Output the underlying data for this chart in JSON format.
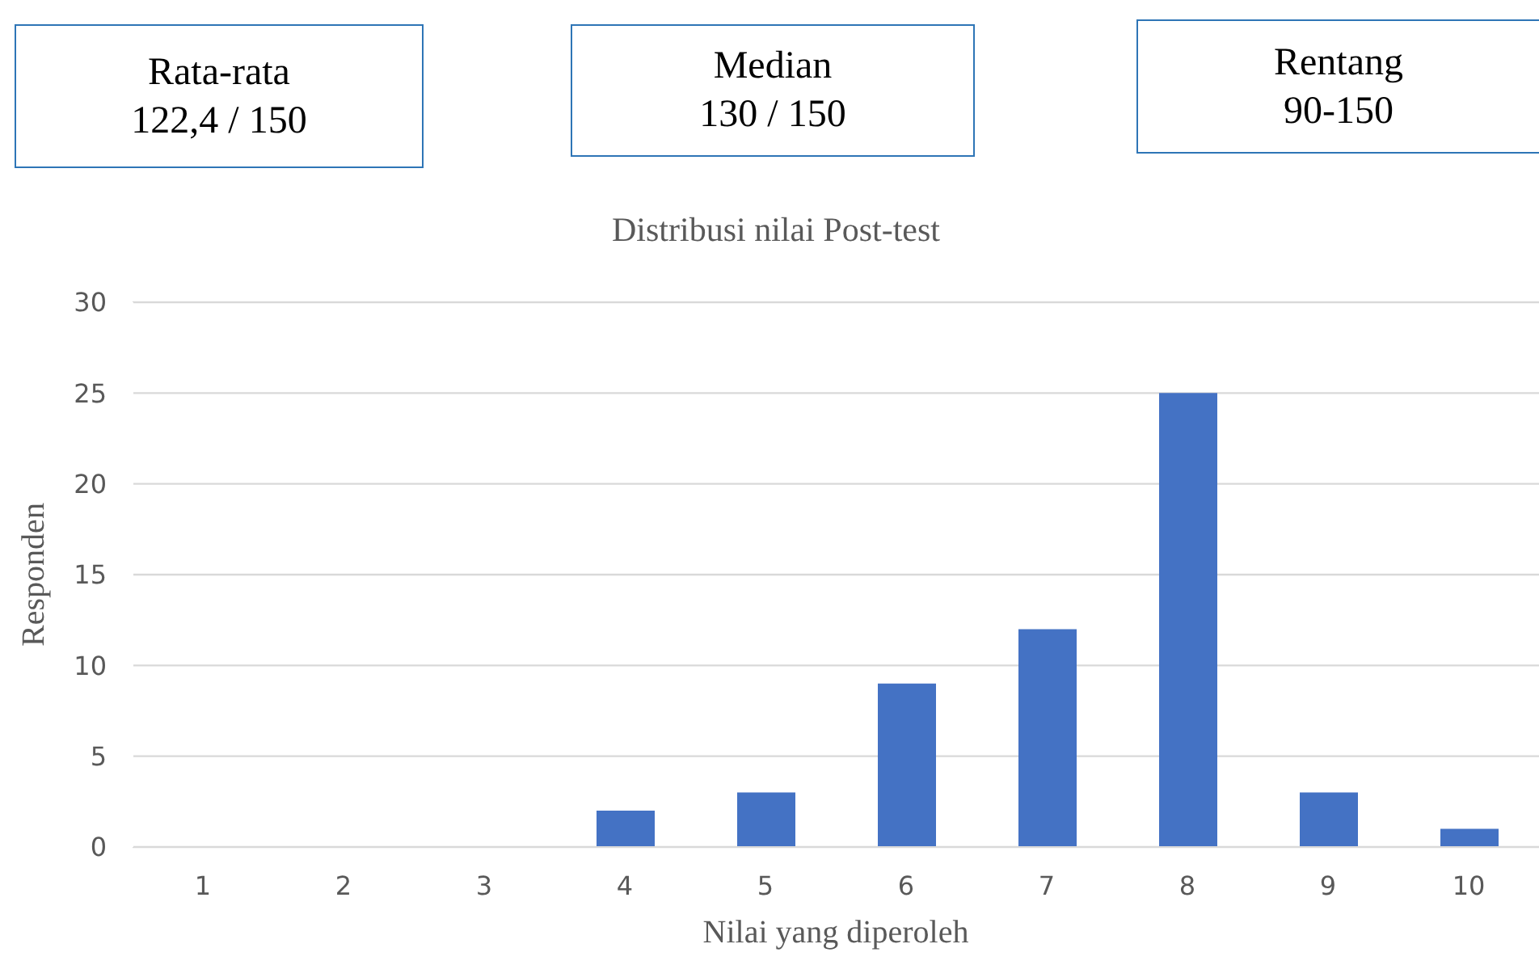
{
  "chart_data": {
    "type": "bar",
    "title": "Distribusi nilai Post-test",
    "xlabel": "Nilai yang diperoleh",
    "ylabel": "Responden",
    "categories": [
      "1",
      "2",
      "3",
      "4",
      "5",
      "6",
      "7",
      "8",
      "9",
      "10"
    ],
    "values": [
      0,
      0,
      0,
      2,
      3,
      9,
      12,
      25,
      3,
      1
    ],
    "color": "#4472c4",
    "ylim": [
      0,
      30
    ],
    "yticks": [
      0,
      5,
      10,
      15,
      20,
      25,
      30
    ],
    "grid": "y",
    "legend": false,
    "annotations": [
      "Rata-rata\n122,4 / 150",
      "Median\n130 / 150",
      "Rentang\n90-150"
    ]
  }
}
